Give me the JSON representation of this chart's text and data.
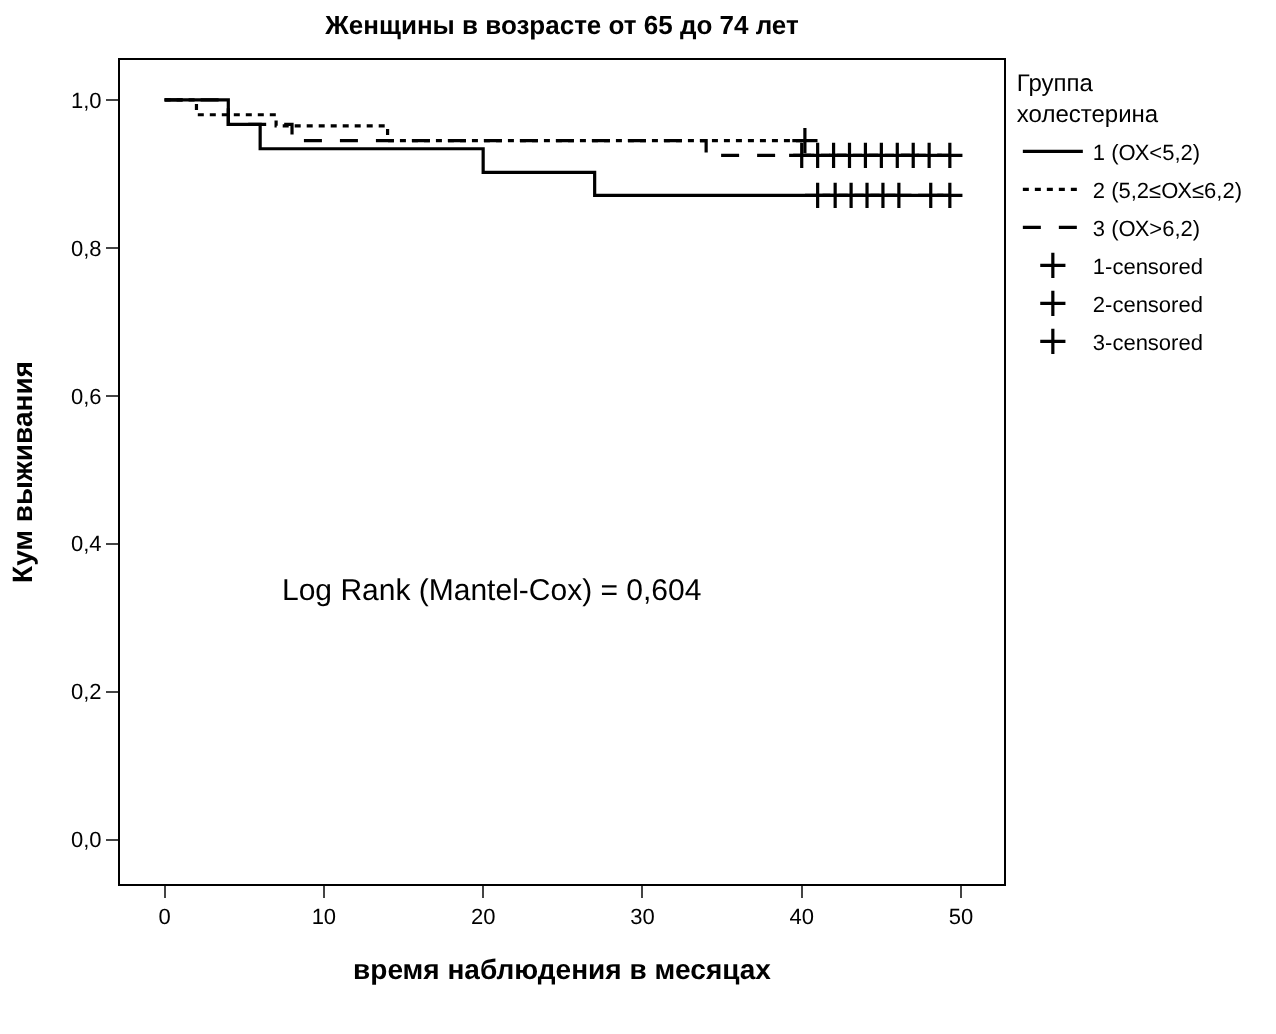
{
  "chart_data": {
    "type": "step",
    "title": "Женщины в возрасте от 65 до 74 лет",
    "xlabel": "время наблюдения в месяцах",
    "ylabel": "Кум выживания",
    "legend_title": "Группа\nхолестерина",
    "series": [
      {
        "name": "1 (ОХ<5,2)",
        "color": "#000000",
        "line_style": "solid",
        "marker": "none",
        "x": [
          0,
          4,
          6,
          20,
          27,
          49.3
        ],
        "values": [
          1.0,
          0.967,
          0.934,
          0.902,
          0.871,
          0.871
        ]
      },
      {
        "name": "2 (5,2≤ОХ≤6,2)",
        "color": "#000000",
        "line_style": "dotted",
        "marker": "none",
        "x": [
          0,
          2,
          7,
          14,
          40.2
        ],
        "values": [
          1.0,
          0.98,
          0.965,
          0.945,
          0.945
        ]
      },
      {
        "name": "3 (ОХ>6,2)",
        "color": "#000000",
        "line_style": "dashed",
        "marker": "none",
        "x": [
          0,
          4,
          8,
          34,
          49.3
        ],
        "values": [
          1.0,
          0.967,
          0.945,
          0.925,
          0.925
        ]
      },
      {
        "name": "1-censored",
        "type": "scatter",
        "color": "#000000",
        "marker": "cross",
        "x": [
          41,
          42.1,
          43.1,
          44.1,
          45.1,
          46.1,
          48.1,
          49.3
        ],
        "values": [
          0.871,
          0.871,
          0.871,
          0.871,
          0.871,
          0.871,
          0.871,
          0.871
        ]
      },
      {
        "name": "2-censored",
        "type": "scatter",
        "color": "#000000",
        "marker": "cross",
        "x": [
          40.2
        ],
        "values": [
          0.945
        ]
      },
      {
        "name": "3-censored",
        "type": "scatter",
        "color": "#000000",
        "marker": "cross",
        "x": [
          40,
          41,
          42,
          43,
          44,
          45,
          46,
          47,
          48,
          49.3
        ],
        "values": [
          0.925,
          0.925,
          0.925,
          0.925,
          0.925,
          0.925,
          0.925,
          0.925,
          0.925,
          0.925
        ]
      }
    ],
    "xlim": [
      -2.8,
      52.7
    ],
    "xticks": [
      0,
      10,
      20,
      30,
      40,
      50
    ],
    "ylim": [
      -0.06,
      1.054
    ],
    "yticks": [
      {
        "value": 0,
        "label": "0,0"
      },
      {
        "value": 0.2,
        "label": "0,2"
      },
      {
        "value": 0.4,
        "label": "0,4"
      },
      {
        "value": 0.6,
        "label": "0,6"
      },
      {
        "value": 0.8,
        "label": "0,8"
      },
      {
        "value": 1.0,
        "label": "1,0"
      }
    ],
    "annotations": [
      "Log Rank (Mantel-Cox) = 0,604"
    ],
    "legend": "right"
  }
}
